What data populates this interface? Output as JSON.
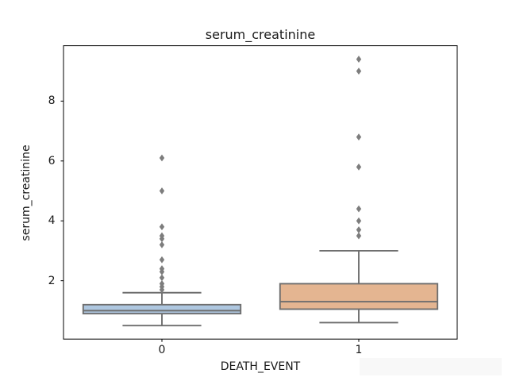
{
  "chart_data": {
    "type": "boxplot",
    "title": "serum_creatinine",
    "xlabel": "DEATH_EVENT",
    "ylabel": "serum_creatinine",
    "categories": [
      "0",
      "1"
    ],
    "yticks": [
      2,
      4,
      6,
      8
    ],
    "ylim": [
      0.05,
      9.85
    ],
    "grid": false,
    "legend": "none",
    "series": [
      {
        "category": "0",
        "whisker_low": 0.5,
        "q1": 0.9,
        "median": 1.0,
        "q3": 1.2,
        "whisker_high": 1.6,
        "outliers": [
          1.7,
          1.8,
          1.9,
          2.1,
          2.3,
          2.4,
          2.7,
          3.2,
          3.4,
          3.5,
          3.8,
          5.0,
          6.1
        ],
        "fill_color": "#aec7e0"
      },
      {
        "category": "1",
        "whisker_low": 0.6,
        "q1": 1.05,
        "median": 1.3,
        "q3": 1.9,
        "whisker_high": 3.0,
        "outliers": [
          3.5,
          3.7,
          4.0,
          4.4,
          5.8,
          6.8,
          9.0,
          9.4
        ],
        "fill_color": "#e4b591"
      }
    ],
    "style": {
      "edge_color": "#6e6e6e",
      "flier_color": "#7d7d7d",
      "spine_color": "#000000",
      "tick_color": "#000000",
      "text_color": "#1a1a1a",
      "background_color": "#ffffff",
      "artifact_color": "#f8f8f8"
    }
  }
}
